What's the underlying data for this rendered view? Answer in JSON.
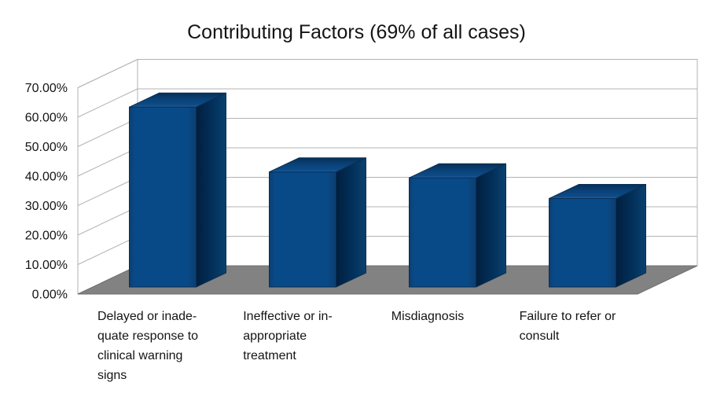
{
  "page": {
    "background": "#ffffff"
  },
  "chart_data": {
    "type": "bar",
    "style": "3d-bar",
    "title": "Contributing Factors (69% of all cases)",
    "categories": [
      "Delayed or inadequate response to clinical warning signs",
      "Ineffective or inappropriate treatment",
      "Misdiagnosis",
      "Failure to refer or consult"
    ],
    "category_label_lines": [
      [
        "Delayed or inade-",
        "quate response to",
        "clinical warning",
        "signs"
      ],
      [
        "Ineffective or in-",
        "appropriate",
        "treatment"
      ],
      [
        "Misdiagnosis"
      ],
      [
        "Failure to refer or",
        "consult"
      ]
    ],
    "values": [
      61,
      39,
      37,
      30
    ],
    "unit": "%",
    "xlabel": "",
    "ylabel": "",
    "ylim": [
      0,
      70
    ],
    "ytick_step": 10,
    "ytick_labels": [
      "0.00%",
      "10.00%",
      "20.00%",
      "30.00%",
      "40.00%",
      "50.00%",
      "60.00%",
      "70.00%"
    ],
    "grid": true,
    "legend": false,
    "colors": {
      "bar_front": "#084a88",
      "bar_front_edge": "#0d3e70",
      "bar_side_dark": "#011f3e",
      "bar_side_mid": "#02305a",
      "bar_side_light": "#0a416f",
      "bar_top_front": "#2465a3",
      "bar_top_mid": "#0a3f74",
      "bar_top_back": "#063056",
      "bar_outline": "#0a2f55",
      "wall": "#ffffff",
      "wall_border": "#b3b3b3",
      "gridline": "#b3b3b3",
      "floor": "#828282",
      "floor_border": "#6f6f6f",
      "text": "#141414"
    }
  }
}
